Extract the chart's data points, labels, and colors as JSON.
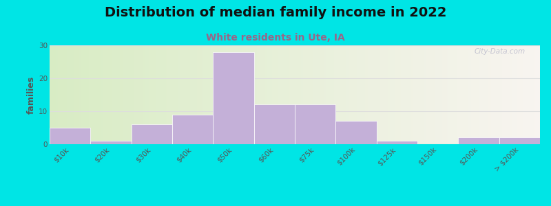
{
  "title": "Distribution of median family income in 2022",
  "subtitle": "White residents in Ute, IA",
  "ylabel": "families",
  "categories": [
    "$10k",
    "$20k",
    "$30k",
    "$40k",
    "$50k",
    "$60k",
    "$75k",
    "$100k",
    "$125k",
    "$150k",
    "$200k",
    "> $200k"
  ],
  "values": [
    5,
    1,
    6,
    9,
    28,
    12,
    12,
    7,
    1,
    0,
    2,
    2
  ],
  "bar_color": "#c4b0d8",
  "bar_edge_color": "#ffffff",
  "ylim": [
    0,
    30
  ],
  "yticks": [
    0,
    10,
    20,
    30
  ],
  "background_outer": "#00e5e5",
  "bg_left_color": "#d8ecc4",
  "bg_right_color": "#f8f4f0",
  "grid_color": "#dddddd",
  "title_fontsize": 14,
  "subtitle_fontsize": 10,
  "subtitle_color": "#996688",
  "ylabel_fontsize": 9,
  "tick_fontsize": 7.5,
  "watermark": "City-Data.com"
}
